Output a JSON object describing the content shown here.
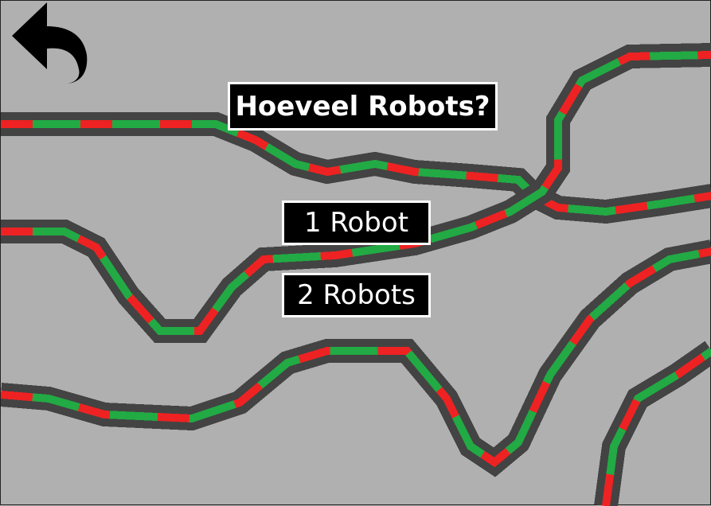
{
  "screen": {
    "background": "#b0b0b0",
    "track_colors": {
      "border": "#434343",
      "red": "#ee2222",
      "green": "#22aa44"
    }
  },
  "back_button": {
    "icon": "back-arrow-icon"
  },
  "title": "Hoeveel Robots?",
  "options": [
    {
      "label": "1 Robot"
    },
    {
      "label": "2 Robots"
    }
  ]
}
